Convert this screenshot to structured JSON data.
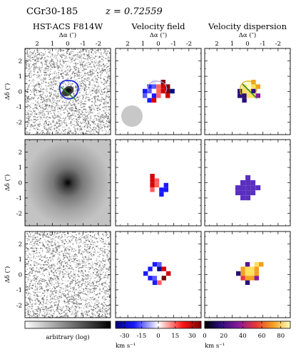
{
  "title": {
    "object": "CGr30-185",
    "redshift": "z = 0.72559"
  },
  "columns": [
    {
      "title": "HST-ACS F814W"
    },
    {
      "title": "Velocity field"
    },
    {
      "title": "Velocity dispersion"
    }
  ],
  "axes": {
    "xlabel": "Δα (″)",
    "ylabel": "Δδ (″)",
    "xticks": [
      "2",
      "1",
      "0",
      "-1",
      "-2"
    ],
    "yticks": [
      "2",
      "1",
      "0",
      "-1",
      "-2"
    ]
  },
  "colorbars": [
    {
      "label": "arbitrary (log)",
      "unit": "",
      "ticks": []
    },
    {
      "label": "",
      "unit": "km s⁻¹",
      "ticks": [
        "-30",
        "-15",
        "0",
        "15",
        "30"
      ],
      "range": [
        -38,
        38
      ]
    },
    {
      "label": "",
      "unit": "km s⁻¹",
      "ticks": [
        "0",
        "20",
        "40",
        "60",
        "80"
      ],
      "range": [
        0,
        90
      ]
    }
  ],
  "colors": {
    "psf_disc": "#c8c8c8",
    "contour_blue": "#1b2bd6",
    "axis_green": "#2e8b2e",
    "dispersion_model": "#4a1fb0"
  }
}
